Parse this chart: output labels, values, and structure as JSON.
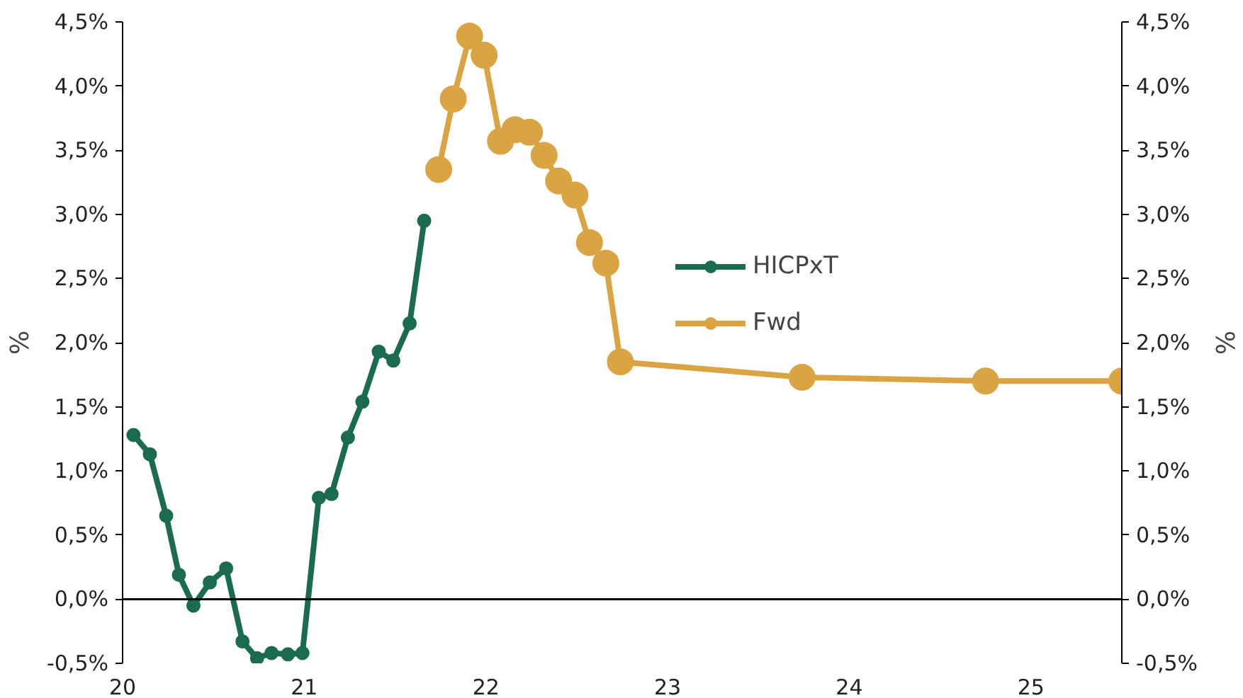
{
  "chart_data": {
    "type": "line",
    "ylabel": "%",
    "y2label": "%",
    "xlim": [
      20,
      25.5
    ],
    "xticks": [
      20,
      21,
      22,
      23,
      24,
      25
    ],
    "ylim": [
      -0.5,
      4.5
    ],
    "yticks": [
      {
        "value": -0.5,
        "label": "-0,5%"
      },
      {
        "value": 0,
        "label": "0,0%"
      },
      {
        "value": 0.5,
        "label": "0,5%"
      },
      {
        "value": 1,
        "label": "1,0%"
      },
      {
        "value": 1.5,
        "label": "1,5%"
      },
      {
        "value": 2,
        "label": "2,0%"
      },
      {
        "value": 2.5,
        "label": "2,5%"
      },
      {
        "value": 3,
        "label": "3,0%"
      },
      {
        "value": 3.5,
        "label": "3,5%"
      },
      {
        "value": 4,
        "label": "4,0%"
      },
      {
        "value": 4.5,
        "label": "4,5%"
      }
    ],
    "y2lim": [
      -0.5,
      4.5
    ],
    "y2ticks": [
      {
        "value": -0.5,
        "label": "-0,5%"
      },
      {
        "value": 0,
        "label": "0,0%"
      },
      {
        "value": 0.5,
        "label": "0,5%"
      },
      {
        "value": 1,
        "label": "1,0%"
      },
      {
        "value": 1.5,
        "label": "1,5%"
      },
      {
        "value": 2,
        "label": "2,0%"
      },
      {
        "value": 2.5,
        "label": "2,5%"
      },
      {
        "value": 3,
        "label": "3,0%"
      },
      {
        "value": 3.5,
        "label": "3,5%"
      },
      {
        "value": 4,
        "label": "4,0%"
      },
      {
        "value": 4.5,
        "label": "4,5%"
      }
    ],
    "grid": false,
    "legend": "right",
    "marker": "circle",
    "line_style": "solid",
    "ref_lines": [
      {
        "axis": "y",
        "value": 0,
        "label": null,
        "color": "#000000"
      }
    ],
    "series": [
      {
        "name": "HICPxT",
        "color": "#1a6b50",
        "x": [
          20.06,
          20.15,
          20.24,
          20.31,
          20.39,
          20.48,
          20.57,
          20.66,
          20.74,
          20.82,
          20.91,
          20.99,
          21.08,
          21.15,
          21.24,
          21.32,
          21.41,
          21.49,
          21.58,
          21.66
        ],
        "values": [
          1.28,
          1.13,
          0.65,
          0.19,
          -0.05,
          0.13,
          0.24,
          -0.33,
          -0.46,
          -0.42,
          -0.43,
          -0.42,
          0.79,
          0.82,
          1.26,
          1.54,
          1.93,
          1.86,
          2.15,
          2.95
        ]
      },
      {
        "name": "Fwd",
        "color": "#dba443",
        "x": [
          21.74,
          21.82,
          21.91,
          21.99,
          22.08,
          22.16,
          22.24,
          22.32,
          22.4,
          22.49,
          22.57,
          22.66,
          22.74,
          23.74,
          24.75,
          25.5
        ],
        "values": [
          3.35,
          3.9,
          4.39,
          4.24,
          3.57,
          3.66,
          3.64,
          3.46,
          3.26,
          3.15,
          2.78,
          2.62,
          1.85,
          1.73,
          1.7,
          1.7
        ]
      }
    ]
  }
}
